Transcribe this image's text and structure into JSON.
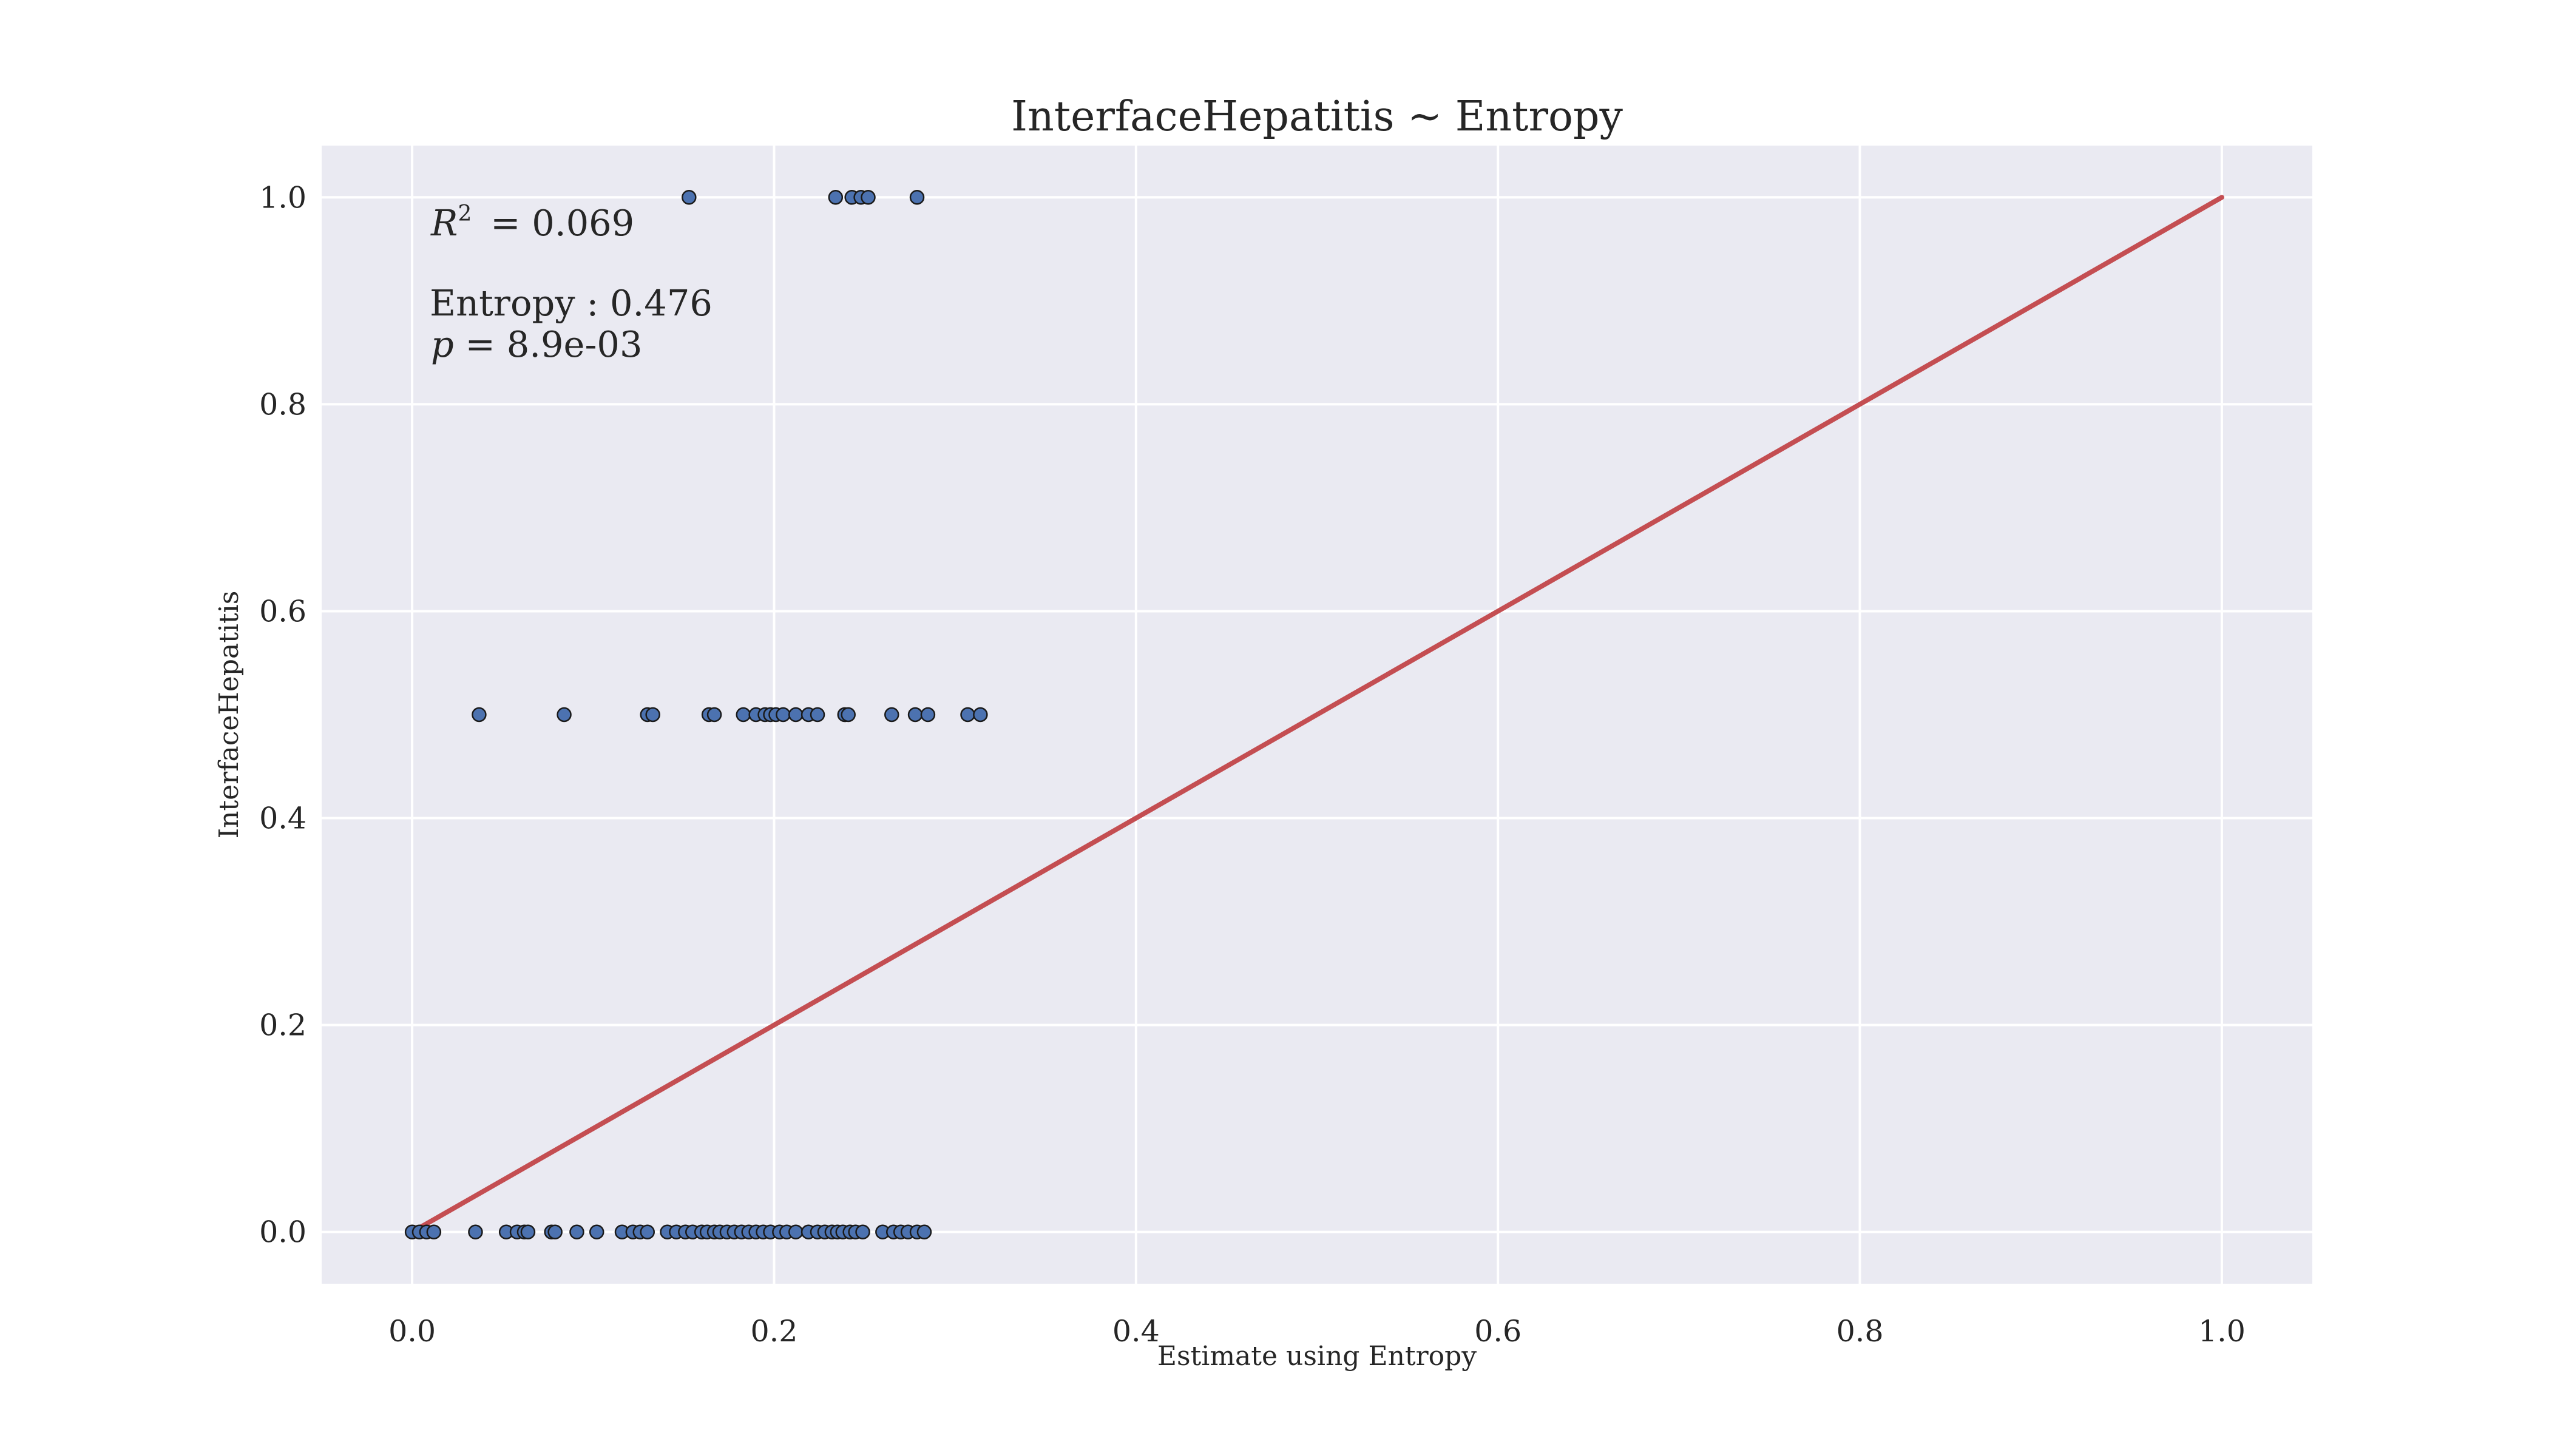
{
  "chart_data": {
    "type": "scatter",
    "title": "InterfaceHepatitis ~ Entropy",
    "xlabel": "Estimate using Entropy",
    "ylabel": "InterfaceHepatitis",
    "xlim": [
      -0.05,
      1.05
    ],
    "ylim": [
      -0.05,
      1.05
    ],
    "xticks": [
      "0.0",
      "0.2",
      "0.4",
      "0.6",
      "0.8",
      "1.0"
    ],
    "yticks": [
      "0.0",
      "0.2",
      "0.4",
      "0.6",
      "0.8",
      "1.0"
    ],
    "grid": true,
    "background_color": "#eaeaf2",
    "point_color": "#4c72b0",
    "line_color": "#c44e52",
    "reference_line": {
      "x": [
        0,
        1
      ],
      "y": [
        0,
        1
      ]
    },
    "annotations": {
      "r2_label": "R",
      "r2_superscript": "2",
      "r2_value": " = 0.069",
      "coef_text": "Entropy : 0.476",
      "p_label": "p",
      "p_value": " = 8.9e-03"
    },
    "series": [
      {
        "points": [
          [
            0.153,
            1.0
          ],
          [
            0.234,
            1.0
          ],
          [
            0.243,
            1.0
          ],
          [
            0.248,
            1.0
          ],
          [
            0.252,
            1.0
          ],
          [
            0.279,
            1.0
          ],
          [
            0.037,
            0.5
          ],
          [
            0.084,
            0.5
          ],
          [
            0.13,
            0.5
          ],
          [
            0.133,
            0.5
          ],
          [
            0.164,
            0.5
          ],
          [
            0.167,
            0.5
          ],
          [
            0.183,
            0.5
          ],
          [
            0.19,
            0.5
          ],
          [
            0.195,
            0.5
          ],
          [
            0.198,
            0.5
          ],
          [
            0.201,
            0.5
          ],
          [
            0.205,
            0.5
          ],
          [
            0.212,
            0.5
          ],
          [
            0.219,
            0.5
          ],
          [
            0.224,
            0.5
          ],
          [
            0.239,
            0.5
          ],
          [
            0.241,
            0.5
          ],
          [
            0.265,
            0.5
          ],
          [
            0.278,
            0.5
          ],
          [
            0.285,
            0.5
          ],
          [
            0.307,
            0.5
          ],
          [
            0.314,
            0.5
          ],
          [
            0.0,
            0.0
          ],
          [
            0.004,
            0.0
          ],
          [
            0.008,
            0.0
          ],
          [
            0.012,
            0.0
          ],
          [
            0.035,
            0.0
          ],
          [
            0.052,
            0.0
          ],
          [
            0.058,
            0.0
          ],
          [
            0.062,
            0.0
          ],
          [
            0.064,
            0.0
          ],
          [
            0.077,
            0.0
          ],
          [
            0.079,
            0.0
          ],
          [
            0.091,
            0.0
          ],
          [
            0.102,
            0.0
          ],
          [
            0.116,
            0.0
          ],
          [
            0.122,
            0.0
          ],
          [
            0.126,
            0.0
          ],
          [
            0.13,
            0.0
          ],
          [
            0.141,
            0.0
          ],
          [
            0.146,
            0.0
          ],
          [
            0.151,
            0.0
          ],
          [
            0.155,
            0.0
          ],
          [
            0.16,
            0.0
          ],
          [
            0.163,
            0.0
          ],
          [
            0.167,
            0.0
          ],
          [
            0.17,
            0.0
          ],
          [
            0.174,
            0.0
          ],
          [
            0.178,
            0.0
          ],
          [
            0.182,
            0.0
          ],
          [
            0.186,
            0.0
          ],
          [
            0.19,
            0.0
          ],
          [
            0.194,
            0.0
          ],
          [
            0.198,
            0.0
          ],
          [
            0.203,
            0.0
          ],
          [
            0.207,
            0.0
          ],
          [
            0.212,
            0.0
          ],
          [
            0.219,
            0.0
          ],
          [
            0.224,
            0.0
          ],
          [
            0.228,
            0.0
          ],
          [
            0.232,
            0.0
          ],
          [
            0.235,
            0.0
          ],
          [
            0.238,
            0.0
          ],
          [
            0.242,
            0.0
          ],
          [
            0.245,
            0.0
          ],
          [
            0.249,
            0.0
          ],
          [
            0.26,
            0.0
          ],
          [
            0.266,
            0.0
          ],
          [
            0.27,
            0.0
          ],
          [
            0.274,
            0.0
          ],
          [
            0.279,
            0.0
          ],
          [
            0.283,
            0.0
          ]
        ]
      }
    ]
  }
}
